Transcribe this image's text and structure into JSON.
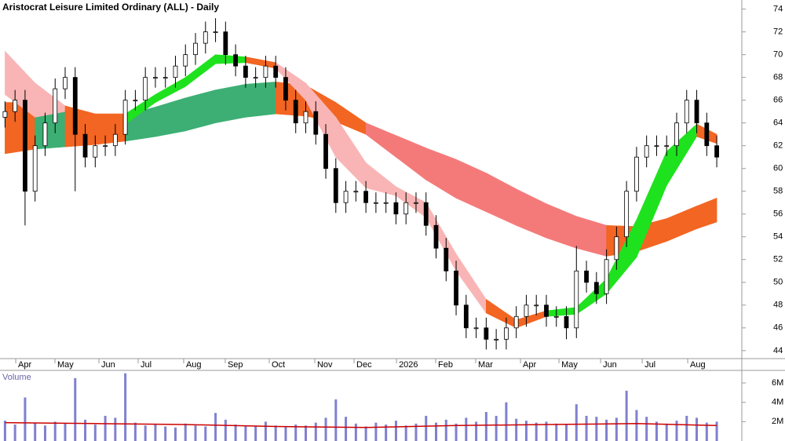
{
  "chart_data": {
    "type": "candlestick",
    "title": "Aristocrat Leisure Limited Ordinary (ALL) - Daily",
    "x": [
      0,
      1,
      2,
      3,
      4,
      5,
      6,
      7,
      8,
      9,
      10,
      11,
      12,
      13,
      14,
      15,
      16,
      17,
      18,
      19,
      20,
      21,
      22,
      23,
      24,
      25,
      26,
      27,
      28,
      29,
      30,
      31,
      32,
      33,
      34,
      35,
      36,
      37,
      38,
      39,
      40,
      41,
      42,
      43,
      44,
      45,
      46,
      47,
      48,
      49,
      50,
      51,
      52,
      53,
      54,
      55,
      56,
      57,
      58,
      59,
      60,
      61,
      62,
      63,
      64,
      65,
      66,
      67,
      68,
      69,
      70,
      71
    ],
    "open": [
      64.5,
      65,
      66,
      58,
      62,
      64,
      67,
      68,
      63,
      61,
      62,
      62,
      63,
      66,
      66,
      68,
      68,
      68,
      69,
      70,
      71,
      72,
      72,
      70,
      69,
      68,
      68,
      69,
      68,
      66,
      64,
      65,
      63,
      60,
      57,
      58,
      58,
      57,
      57,
      57,
      56,
      57,
      57,
      55,
      53,
      51,
      48,
      46,
      46,
      45,
      45,
      46,
      47,
      48,
      48,
      47,
      47,
      46,
      51,
      50,
      49,
      52,
      54,
      58,
      61,
      62,
      62,
      62,
      64,
      66,
      64,
      62
    ],
    "high": [
      65.9,
      66.9,
      66.9,
      62.9,
      64.9,
      67.9,
      68.9,
      68.9,
      63.9,
      62.9,
      62.9,
      63.9,
      66.9,
      66.9,
      68.9,
      68.9,
      68.9,
      69.9,
      70.9,
      71.9,
      72.9,
      73.2,
      72.9,
      70.9,
      69.9,
      68.9,
      69.9,
      69.9,
      68.9,
      66.9,
      65.9,
      65.9,
      63.9,
      60.9,
      58.9,
      58.9,
      58.9,
      57.9,
      57.9,
      57.9,
      57.9,
      57.9,
      57.9,
      55.9,
      53.9,
      51.9,
      48.9,
      46.9,
      46.9,
      45.9,
      46.9,
      47.9,
      48.9,
      48.9,
      48.9,
      47.9,
      47.9,
      53.2,
      51.9,
      50.9,
      52.9,
      54.9,
      58.9,
      61.9,
      62.9,
      62.9,
      62.9,
      64.9,
      66.9,
      66.9,
      64.9,
      62.9
    ],
    "low": [
      63.6,
      64.1,
      55,
      57.1,
      61.1,
      63.1,
      66.1,
      58,
      60.1,
      60.1,
      61.1,
      61.1,
      62.1,
      65.1,
      65.1,
      67.1,
      67.1,
      67.1,
      68.1,
      69.1,
      70.1,
      71.1,
      69.1,
      68.1,
      67.1,
      67.1,
      67.1,
      67.1,
      65.1,
      63.1,
      63.1,
      62.1,
      59.1,
      56.1,
      56.1,
      57.1,
      56.1,
      56.1,
      56.1,
      55.1,
      55.1,
      56.1,
      54.1,
      52.1,
      50.1,
      47.1,
      45.1,
      45.1,
      44.1,
      44.1,
      44.1,
      45.1,
      46.1,
      47.1,
      46.1,
      46.1,
      45,
      45.1,
      49.1,
      48.1,
      48.1,
      51.1,
      53.1,
      57.1,
      60.1,
      61.1,
      61.1,
      61.1,
      63.1,
      63.1,
      61.1,
      60.1
    ],
    "close": [
      65,
      66,
      58,
      62,
      64,
      67,
      68,
      63,
      61,
      62,
      62,
      63,
      66,
      66,
      68,
      68,
      68,
      69,
      70,
      71,
      72,
      72,
      70,
      69,
      68,
      68,
      69,
      68,
      66,
      64,
      65,
      63,
      60,
      57,
      58,
      58,
      57,
      57,
      57,
      56,
      57,
      57,
      55,
      53,
      51,
      48,
      46,
      46,
      45,
      45,
      46,
      47,
      48,
      48,
      47,
      47,
      46,
      51,
      50,
      49,
      52,
      54,
      58,
      61,
      62,
      62,
      62,
      64,
      66,
      64,
      62,
      61
    ],
    "up_color": "#ffffff",
    "down_color": "#000000",
    "bands": [
      {
        "x": [
          0,
          3,
          6,
          9,
          12,
          15,
          18,
          21,
          24,
          27,
          30,
          33,
          36,
          39,
          42,
          45,
          48,
          51,
          54,
          57,
          60,
          63,
          66,
          69,
          71
        ],
        "upper": [
          65.8,
          65.8,
          65.2,
          64.6,
          64.7,
          65.4,
          66.2,
          66.9,
          67.4,
          67.6,
          67.3,
          65.8,
          64.0,
          62.9,
          61.8,
          60.8,
          59.6,
          58.2,
          56.9,
          55.8,
          55.0,
          54.9,
          55.6,
          56.7,
          57.4
        ],
        "lower": [
          61.3,
          61.7,
          61.9,
          62.1,
          62.4,
          62.8,
          63.3,
          64.0,
          64.5,
          64.8,
          64.6,
          64.1,
          63.0,
          61.0,
          59.0,
          57.4,
          56.2,
          55.0,
          53.9,
          53.0,
          52.3,
          52.7,
          53.6,
          54.7,
          55.3
        ],
        "colors": [
          "#f26522",
          "#3daf74",
          "#f26522",
          "#f26522",
          "#3daf74",
          "#3daf74",
          "#3daf74",
          "#3daf74",
          "#3daf74",
          "#f26522",
          "#f26522",
          "#f26522",
          "#f47a7a",
          "#f47a7a",
          "#f47a7a",
          "#f47a7a",
          "#f47a7a",
          "#f47a7a",
          "#f47a7a",
          "#f47a7a",
          "#f26522",
          "#f26522",
          "#f26522",
          "#f26522"
        ]
      },
      {
        "x": [
          0,
          3,
          6,
          9,
          12,
          15,
          18,
          21,
          24,
          27,
          30,
          33,
          36,
          39,
          42,
          45,
          48,
          51,
          54,
          57,
          60,
          63,
          66,
          69,
          71
        ],
        "upper": [
          70.3,
          67.5,
          65.5,
          64.8,
          64.8,
          66.5,
          68.0,
          70.0,
          69.8,
          69.3,
          67.5,
          64.5,
          60.5,
          58.4,
          57.0,
          52.5,
          48.5,
          46.7,
          47.5,
          47.8,
          50.3,
          55.5,
          61.5,
          63.9,
          63.0
        ],
        "lower": [
          66.5,
          64.5,
          65.0,
          62.8,
          63.9,
          65.8,
          67.2,
          69.2,
          69.3,
          68.8,
          66.0,
          61.0,
          58.3,
          57.6,
          55.7,
          51.0,
          47.3,
          46.0,
          47.0,
          47.2,
          49.0,
          52.2,
          58.5,
          62.8,
          62.2
        ],
        "colors": [
          "#f9b5b5",
          "#f9b5b5",
          "#f26522",
          "#f26522",
          "#1ee21e",
          "#1ee21e",
          "#1ee21e",
          "#1ee21e",
          "#f26522",
          "#f9b5b5",
          "#f9b5b5",
          "#f9b5b5",
          "#f9b5b5",
          "#f9b5b5",
          "#f9b5b5",
          "#f9b5b5",
          "#f26522",
          "#f26522",
          "#1ee21e",
          "#1ee21e",
          "#1ee21e",
          "#1ee21e",
          "#1ee21e",
          "#f26522"
        ]
      }
    ],
    "xlim": [
      -0.5,
      73.5
    ],
    "xticks": [
      {
        "value": 1.07,
        "label": "Apr"
      },
      {
        "value": 4.98,
        "label": "May"
      },
      {
        "value": 9.37,
        "label": "Jun"
      },
      {
        "value": 13.28,
        "label": "Jul"
      },
      {
        "value": 17.82,
        "label": "Aug"
      },
      {
        "value": 21.97,
        "label": "Sep"
      },
      {
        "value": 26.36,
        "label": "Oct"
      },
      {
        "value": 30.9,
        "label": "Nov"
      },
      {
        "value": 34.82,
        "label": "Dec"
      },
      {
        "value": 39.05,
        "label": "2026"
      },
      {
        "value": 42.96,
        "label": "Feb"
      },
      {
        "value": 46.95,
        "label": "Mar"
      },
      {
        "value": 51.42,
        "label": "Apr"
      },
      {
        "value": 55.26,
        "label": "May"
      },
      {
        "value": 59.41,
        "label": "Jun"
      },
      {
        "value": 63.56,
        "label": "Jul"
      },
      {
        "value": 68.1,
        "label": "Aug"
      }
    ],
    "ylim": [
      43.3,
      74.8
    ],
    "yticks": [
      44,
      46,
      48,
      50,
      52,
      54,
      56,
      58,
      60,
      62,
      64,
      66,
      68,
      70,
      72,
      74
    ],
    "grid": false,
    "volume": {
      "label": "Volume",
      "color": "#8080d0",
      "values": [
        2100000,
        1700000,
        4500000,
        1900000,
        1600000,
        2000000,
        1800000,
        6500000,
        2200000,
        1700000,
        2600000,
        2400000,
        7000000,
        1900000,
        1600000,
        1700000,
        1500000,
        1400000,
        1800000,
        1600000,
        1500000,
        2900000,
        2200000,
        1700000,
        1600000,
        1500000,
        2000000,
        1600000,
        1500000,
        1700000,
        1600000,
        1900000,
        2400000,
        4300000,
        2500000,
        1800000,
        1500000,
        1900000,
        1700000,
        2100000,
        1600000,
        1800000,
        2600000,
        1900000,
        2200000,
        1800000,
        2400000,
        2000000,
        3000000,
        2600000,
        4000000,
        2300000,
        2100000,
        1900000,
        2000000,
        1800000,
        1700000,
        3800000,
        2600000,
        2500000,
        2200000,
        2400000,
        5200000,
        3200000,
        2500000,
        2000000,
        1800000,
        2100000,
        2600000,
        2400000,
        1900000,
        2000000
      ],
      "ylim": [
        0,
        7300000
      ],
      "yticks": [
        {
          "value": 2000000,
          "label": "2M"
        },
        {
          "value": 4000000,
          "label": "4M"
        },
        {
          "value": 6000000,
          "label": "6M"
        }
      ],
      "ma": {
        "x": [
          0,
          9,
          18,
          27,
          36,
          45,
          54,
          63,
          71
        ],
        "values": [
          1900000,
          1800000,
          1700000,
          1500000,
          1400000,
          1600000,
          1700000,
          1800000,
          1600000
        ],
        "color": "#cc0000"
      }
    }
  }
}
